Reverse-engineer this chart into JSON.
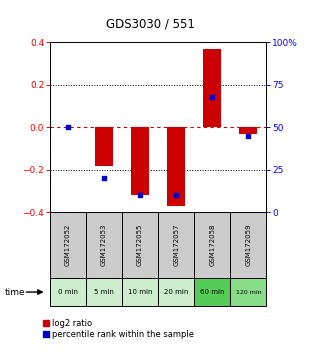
{
  "title": "GDS3030 / 551",
  "samples": [
    "GSM172052",
    "GSM172053",
    "GSM172055",
    "GSM172057",
    "GSM172058",
    "GSM172059"
  ],
  "times": [
    "0 min",
    "5 min",
    "10 min",
    "20 min",
    "60 min",
    "120 min"
  ],
  "log2_ratio": [
    0.0,
    -0.18,
    -0.32,
    -0.37,
    0.37,
    -0.03
  ],
  "percentile_rank_pct": [
    50,
    20,
    10,
    10,
    68,
    45
  ],
  "ylim_left": [
    -0.4,
    0.4
  ],
  "ylim_right": [
    0,
    100
  ],
  "bar_color": "#cc0000",
  "dot_color": "#0000cc",
  "zero_line_color": "#cc0000",
  "background_color": "#ffffff",
  "time_colors": [
    "#cceecc",
    "#cceecc",
    "#cceecc",
    "#cceecc",
    "#55cc55",
    "#88dd88"
  ],
  "sample_bg": "#cccccc",
  "legend_log2": "log2 ratio",
  "legend_pct": "percentile rank within the sample",
  "yticks_left": [
    -0.4,
    -0.2,
    0,
    0.2,
    0.4
  ],
  "yticks_right": [
    0,
    25,
    50,
    75,
    100
  ],
  "ytick_labels_right": [
    "0",
    "25",
    "50",
    "75",
    "100%"
  ]
}
